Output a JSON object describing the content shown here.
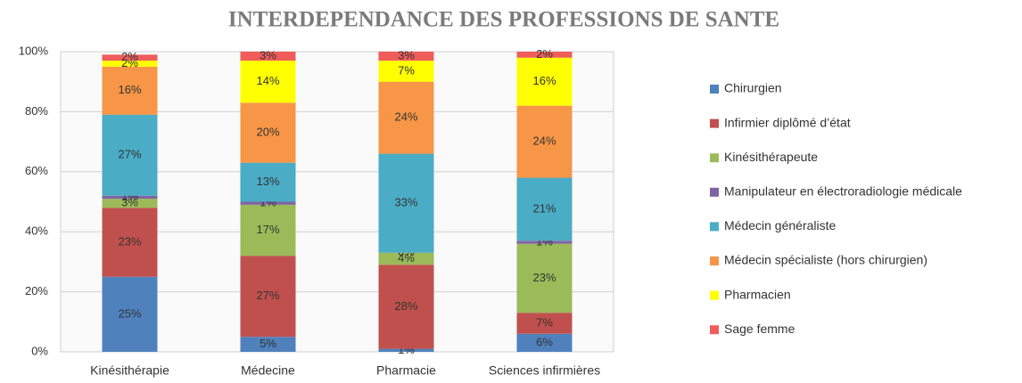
{
  "chart_data": {
    "type": "stacked_bar",
    "title": "INTERDEPENDANCE DES PROFESSIONS DE SANTE",
    "categories": [
      "Kinésithérapie",
      "Médecine",
      "Pharmacie",
      "Sciences infirmières"
    ],
    "series": [
      {
        "name": "Chirurgien",
        "color": "#4f81bd",
        "values": [
          25,
          5,
          1,
          6
        ],
        "value_labels": [
          "25%",
          "5%",
          "1%",
          "6%"
        ]
      },
      {
        "name": "Infirmier diplômé d’état",
        "color": "#c0504d",
        "values": [
          23,
          27,
          28,
          7
        ],
        "value_labels": [
          "23%",
          "27%",
          "28%",
          "7%"
        ]
      },
      {
        "name": "Kinésithérapeute",
        "color": "#9bbb59",
        "values": [
          3,
          17,
          4,
          23
        ],
        "value_labels": [
          "3%",
          "17%",
          "4%",
          "23%"
        ]
      },
      {
        "name": "Manipulateur en électroradiologie médicale",
        "color": "#8064a2",
        "values": [
          1,
          1,
          0,
          1
        ],
        "value_labels": [
          "1%",
          "1%",
          "0%",
          "1%"
        ]
      },
      {
        "name": "Médecin généraliste",
        "color": "#4bacc6",
        "values": [
          27,
          13,
          33,
          21
        ],
        "value_labels": [
          "27%",
          "13%",
          "33%",
          "21%"
        ]
      },
      {
        "name": "Médecin spécialiste (hors chirurgien)",
        "color": "#f79646",
        "values": [
          16,
          20,
          24,
          24
        ],
        "value_labels": [
          "16%",
          "20%",
          "24%",
          "24%"
        ]
      },
      {
        "name": "Pharmacien",
        "color": "#ffff00",
        "values": [
          2,
          14,
          7,
          16
        ],
        "value_labels": [
          "2%",
          "14%",
          "7%",
          "16%"
        ]
      },
      {
        "name": "Sage femme",
        "color": "#ef5d5a",
        "values": [
          2,
          3,
          3,
          2
        ],
        "value_labels": [
          "2%",
          "3%",
          "3%",
          "2%"
        ]
      }
    ],
    "ylim": [
      0,
      100
    ],
    "yticks": [
      {
        "value": 0,
        "label": "0%"
      },
      {
        "value": 20,
        "label": "20%"
      },
      {
        "value": 40,
        "label": "40%"
      },
      {
        "value": 60,
        "label": "60%"
      },
      {
        "value": 80,
        "label": "80%"
      },
      {
        "value": 100,
        "label": "100%"
      }
    ],
    "grid": true,
    "legend_position": "right"
  }
}
